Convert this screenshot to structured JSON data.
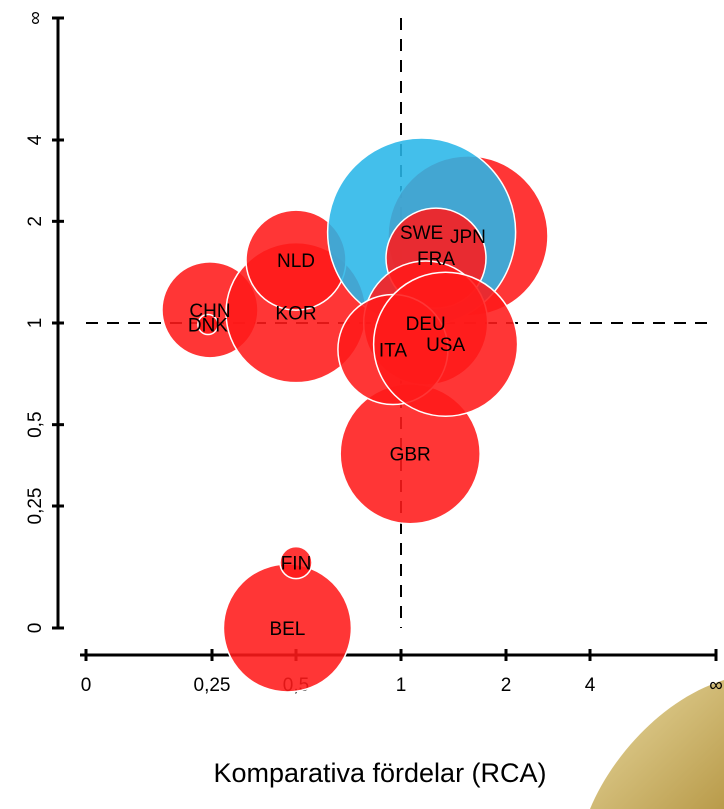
{
  "chart_data": {
    "type": "scatter",
    "x_label": "Komparativa fördelar (RCA)",
    "xlim": [
      0,
      null
    ],
    "ylim": [
      0,
      null
    ],
    "xticks": [
      0,
      {
        "value": 0.25,
        "label": "0,25"
      },
      {
        "value": 0.5,
        "label": "0,5"
      },
      1,
      2,
      4,
      {
        "value": null,
        "label": "∞"
      }
    ],
    "yticks": [
      0,
      {
        "value": 0.25,
        "label": "0,25"
      },
      {
        "value": 0.5,
        "label": "0,5"
      },
      1,
      2,
      4,
      {
        "value": null,
        "label": "∞"
      }
    ],
    "reference_x": 1,
    "reference_y": 1,
    "series": [
      {
        "name": "BEL",
        "color": "#ff1a1a",
        "x": 0.47,
        "y": 0,
        "size": 64
      },
      {
        "name": "FIN",
        "color": "#ff1a1a",
        "x": 0.5,
        "y": 0.12,
        "size": 16
      },
      {
        "name": "GBR",
        "color": "#ff1a1a",
        "x": 1.06,
        "y": 0.4,
        "size": 70
      },
      {
        "name": "CHN",
        "color": "#ff1a1a",
        "x": 0.245,
        "y": 1.09,
        "size": 48
      },
      {
        "name": "DNK",
        "color": "#ff1a1a",
        "x": 0.24,
        "y": 0.99,
        "size": 10
      },
      {
        "name": "KOR",
        "color": "#ff1a1a",
        "x": 0.5,
        "y": 1.07,
        "size": 70
      },
      {
        "name": "NLD",
        "color": "#ff1a1a",
        "x": 0.5,
        "y": 1.52,
        "size": 50
      },
      {
        "name": "JPN",
        "color": "#ff1a1a",
        "x": 1.54,
        "y": 1.8,
        "size": 80
      },
      {
        "name": "SWE",
        "color": "#29b6e8",
        "x": 1.14,
        "y": 1.85,
        "size": 94
      },
      {
        "name": "FRA",
        "color": "#ff1a1a",
        "x": 1.25,
        "y": 1.54,
        "size": 50
      },
      {
        "name": "DEU",
        "color": "#ff1a1a",
        "x": 1.17,
        "y": 1.0,
        "size": 62
      },
      {
        "name": "ITA",
        "color": "#ff1a1a",
        "x": 0.95,
        "y": 0.84,
        "size": 55
      },
      {
        "name": "USA",
        "color": "#ff1a1a",
        "x": 1.33,
        "y": 0.87,
        "size": 72
      }
    ]
  }
}
